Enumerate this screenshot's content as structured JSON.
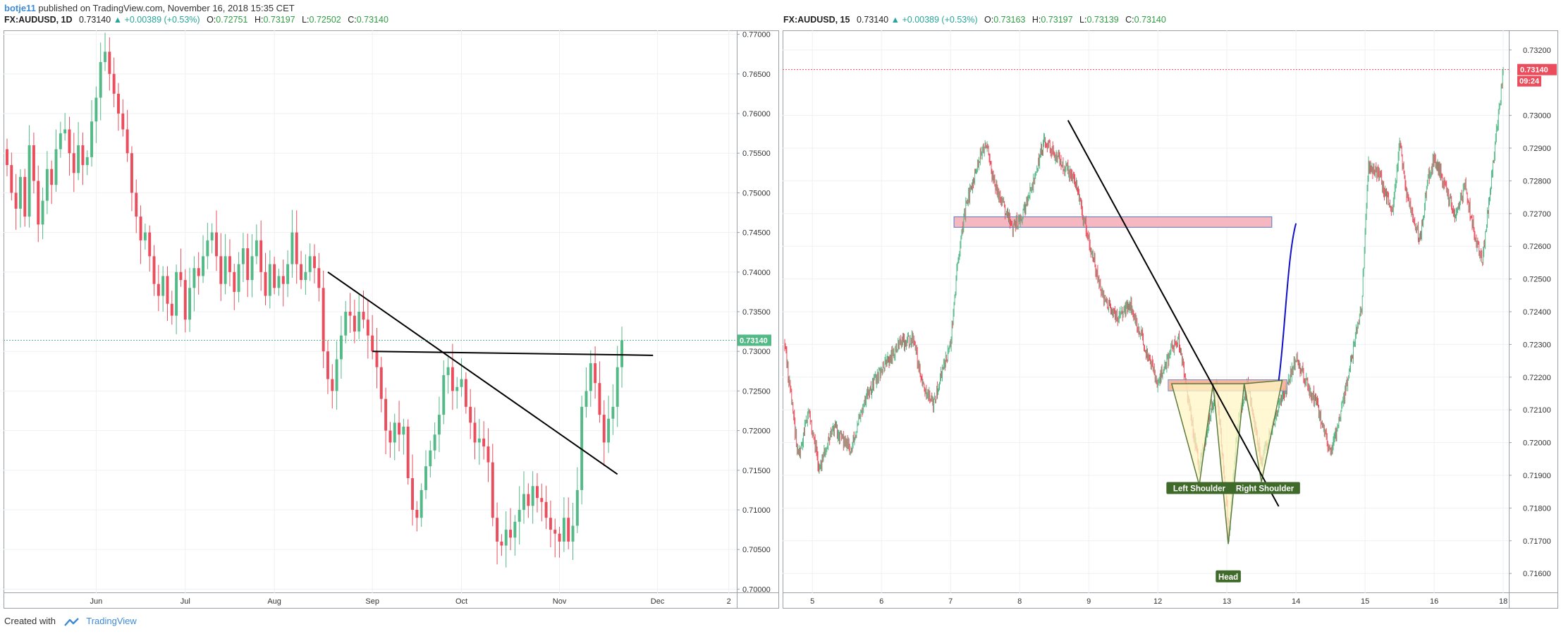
{
  "header": {
    "username": "botje11",
    "published_text": "published on TradingView.com, November 16, 2018 15:35 CET"
  },
  "left_legend": {
    "symbol": "FX:AUDUSD, 1D",
    "last": "0.73140",
    "change": "▲ +0.00389 (+0.53%)",
    "o_label": "O:",
    "o": "0.72751",
    "h_label": "H:",
    "h": "0.73197",
    "l_label": "L:",
    "l": "0.72502",
    "c_label": "C:",
    "c": "0.73140"
  },
  "right_legend": {
    "symbol": "FX:AUDUSD, 15",
    "last": "0.73140",
    "change": "▲ +0.00389 (+0.53%)",
    "o_label": "O:",
    "o": "0.73163",
    "h_label": "H:",
    "h": "0.73197",
    "l_label": "L:",
    "l": "0.73139",
    "c_label": "C:",
    "c": "0.73140"
  },
  "footer": {
    "created_with": "Created with",
    "brand": "TradingView"
  },
  "colors": {
    "up": "#53b987",
    "down": "#eb4d5c",
    "trendline": "#000000",
    "curve": "#1010c8",
    "zone_fill": "#f6b8c0",
    "shoulder_fill": "#fff6c4",
    "label_bg": "#3f6a2a"
  },
  "chart_data": [
    {
      "type": "candlestick",
      "title": "FX:AUDUSD, 1D",
      "ylim": [
        0.6995,
        0.7705
      ],
      "y_ticks": [
        "0.77000",
        "0.76500",
        "0.76000",
        "0.75500",
        "0.75000",
        "0.74500",
        "0.74000",
        "0.73500",
        "0.73000",
        "0.72500",
        "0.72000",
        "0.71500",
        "0.71000",
        "0.70500",
        "0.70000"
      ],
      "y_tick_values": [
        0.77,
        0.765,
        0.76,
        0.755,
        0.75,
        0.745,
        0.74,
        0.735,
        0.73,
        0.725,
        0.72,
        0.715,
        0.71,
        0.705,
        0.7
      ],
      "x_ticks": [
        "Jun",
        "Jul",
        "Aug",
        "Sep",
        "Oct",
        "Nov",
        "Dec",
        "2"
      ],
      "x_tick_index": [
        20,
        40,
        60,
        82,
        102,
        124,
        146,
        162
      ],
      "x_range": [
        0,
        163
      ],
      "price_label": "0.73140",
      "price_value": 0.7314,
      "trendlines": [
        {
          "from": [
            72,
            0.74
          ],
          "to": [
            137,
            0.7145
          ]
        },
        {
          "from": [
            82,
            0.73
          ],
          "to": [
            145,
            0.7295
          ]
        }
      ],
      "close": [
        0.7535,
        0.75,
        0.748,
        0.752,
        0.747,
        0.756,
        0.7515,
        0.746,
        0.749,
        0.753,
        0.751,
        0.7555,
        0.7575,
        0.758,
        0.755,
        0.7525,
        0.756,
        0.7535,
        0.7545,
        0.759,
        0.762,
        0.7665,
        0.7678,
        0.765,
        0.7625,
        0.76,
        0.758,
        0.755,
        0.75,
        0.747,
        0.744,
        0.745,
        0.742,
        0.7385,
        0.737,
        0.7395,
        0.736,
        0.7345,
        0.74,
        0.739,
        0.734,
        0.738,
        0.7405,
        0.7395,
        0.742,
        0.744,
        0.745,
        0.742,
        0.7385,
        0.742,
        0.74,
        0.7375,
        0.741,
        0.743,
        0.739,
        0.742,
        0.744,
        0.74,
        0.737,
        0.741,
        0.738,
        0.7395,
        0.7385,
        0.741,
        0.745,
        0.741,
        0.739,
        0.74,
        0.742,
        0.7405,
        0.738,
        0.73,
        0.7265,
        0.725,
        0.729,
        0.732,
        0.735,
        0.7345,
        0.7325,
        0.735,
        0.734,
        0.732,
        0.73,
        0.728,
        0.724,
        0.72,
        0.7185,
        0.721,
        0.7195,
        0.7205,
        0.714,
        0.71,
        0.709,
        0.7125,
        0.7155,
        0.7175,
        0.7195,
        0.722,
        0.727,
        0.728,
        0.725,
        0.7255,
        0.7265,
        0.723,
        0.721,
        0.7185,
        0.719,
        0.718,
        0.716,
        0.709,
        0.706,
        0.7055,
        0.7075,
        0.7065,
        0.7085,
        0.71,
        0.712,
        0.7105,
        0.713,
        0.7115,
        0.711,
        0.709,
        0.7075,
        0.707,
        0.706,
        0.709,
        0.706,
        0.708,
        0.7125,
        0.723,
        0.725,
        0.7285,
        0.726,
        0.722,
        0.7185,
        0.7215,
        0.723,
        0.728,
        0.7314
      ]
    },
    {
      "type": "candlestick",
      "title": "FX:AUDUSD, 15",
      "ylim": [
        0.7154,
        0.7326
      ],
      "y_ticks": [
        "0.73200",
        "0.73000",
        "0.72900",
        "0.72800",
        "0.72700",
        "0.72600",
        "0.72500",
        "0.72400",
        "0.72300",
        "0.72200",
        "0.72100",
        "0.72000",
        "0.71900",
        "0.71800",
        "0.71700",
        "0.71600"
      ],
      "y_tick_values": [
        0.732,
        0.73,
        0.729,
        0.728,
        0.727,
        0.726,
        0.725,
        0.724,
        0.723,
        0.722,
        0.721,
        0.72,
        0.719,
        0.718,
        0.717,
        0.716
      ],
      "x_ticks": [
        "5",
        "6",
        "7",
        "8",
        "9",
        "12",
        "13",
        "14",
        "15",
        "16",
        "18"
      ],
      "x_tick_index": [
        40,
        140,
        240,
        340,
        440,
        540,
        640,
        740,
        840,
        940,
        1040
      ],
      "x_range": [
        0,
        1045
      ],
      "price_label": "0.73140",
      "price_value": 0.7314,
      "countdown_label": "09:24",
      "anchor_close": [
        [
          0,
          0.723
        ],
        [
          20,
          0.7195
        ],
        [
          35,
          0.721
        ],
        [
          50,
          0.7192
        ],
        [
          70,
          0.7205
        ],
        [
          95,
          0.7198
        ],
        [
          120,
          0.7215
        ],
        [
          140,
          0.7222
        ],
        [
          165,
          0.723
        ],
        [
          185,
          0.7232
        ],
        [
          200,
          0.7218
        ],
        [
          215,
          0.7212
        ],
        [
          240,
          0.723
        ],
        [
          250,
          0.7255
        ],
        [
          262,
          0.7272
        ],
        [
          280,
          0.7285
        ],
        [
          290,
          0.7292
        ],
        [
          305,
          0.7278
        ],
        [
          330,
          0.7266
        ],
        [
          345,
          0.727
        ],
        [
          360,
          0.728
        ],
        [
          375,
          0.7292
        ],
        [
          395,
          0.7287
        ],
        [
          420,
          0.728
        ],
        [
          440,
          0.7262
        ],
        [
          460,
          0.7245
        ],
        [
          480,
          0.7238
        ],
        [
          500,
          0.7242
        ],
        [
          520,
          0.723
        ],
        [
          540,
          0.7218
        ],
        [
          560,
          0.7228
        ],
        [
          570,
          0.7232
        ],
        [
          585,
          0.7212
        ],
        [
          600,
          0.7192
        ],
        [
          625,
          0.7218
        ],
        [
          640,
          0.718
        ],
        [
          642,
          0.717
        ],
        [
          655,
          0.7205
        ],
        [
          670,
          0.7218
        ],
        [
          690,
          0.7194
        ],
        [
          710,
          0.7208
        ],
        [
          740,
          0.7225
        ],
        [
          770,
          0.7212
        ],
        [
          790,
          0.7196
        ],
        [
          810,
          0.7214
        ],
        [
          835,
          0.7242
        ],
        [
          845,
          0.7285
        ],
        [
          860,
          0.7282
        ],
        [
          880,
          0.727
        ],
        [
          890,
          0.7292
        ],
        [
          900,
          0.7276
        ],
        [
          920,
          0.7262
        ],
        [
          930,
          0.728
        ],
        [
          940,
          0.7287
        ],
        [
          970,
          0.727
        ],
        [
          985,
          0.7278
        ],
        [
          1000,
          0.7262
        ],
        [
          1010,
          0.7256
        ],
        [
          1025,
          0.7285
        ],
        [
          1040,
          0.7314
        ]
      ],
      "supply_zone": {
        "x": [
          245,
          705
        ],
        "y": [
          0.72658,
          0.7269
        ]
      },
      "neckline_zone": {
        "x": [
          555,
          727
        ],
        "y": [
          0.72158,
          0.72192
        ]
      },
      "trendline": {
        "from": [
          410,
          0.72985
        ],
        "to": [
          715,
          0.71805
        ]
      },
      "projection_curve": [
        [
          715,
          0.7219
        ],
        [
          724,
          0.7233
        ],
        [
          728,
          0.7258
        ],
        [
          740,
          0.7267
        ]
      ],
      "pattern_points": [
        [
          560,
          0.7218
        ],
        [
          600,
          0.7187
        ],
        [
          620,
          0.7218
        ],
        [
          642,
          0.7169
        ],
        [
          665,
          0.7218
        ],
        [
          690,
          0.7188
        ],
        [
          720,
          0.7219
        ]
      ],
      "annotations": [
        {
          "text": "Left Shoulder",
          "x": 600,
          "y": 0.7186
        },
        {
          "text": "Head",
          "x": 642,
          "y": 0.7159
        },
        {
          "text": "Right Shoulder",
          "x": 695,
          "y": 0.7186
        }
      ]
    }
  ]
}
